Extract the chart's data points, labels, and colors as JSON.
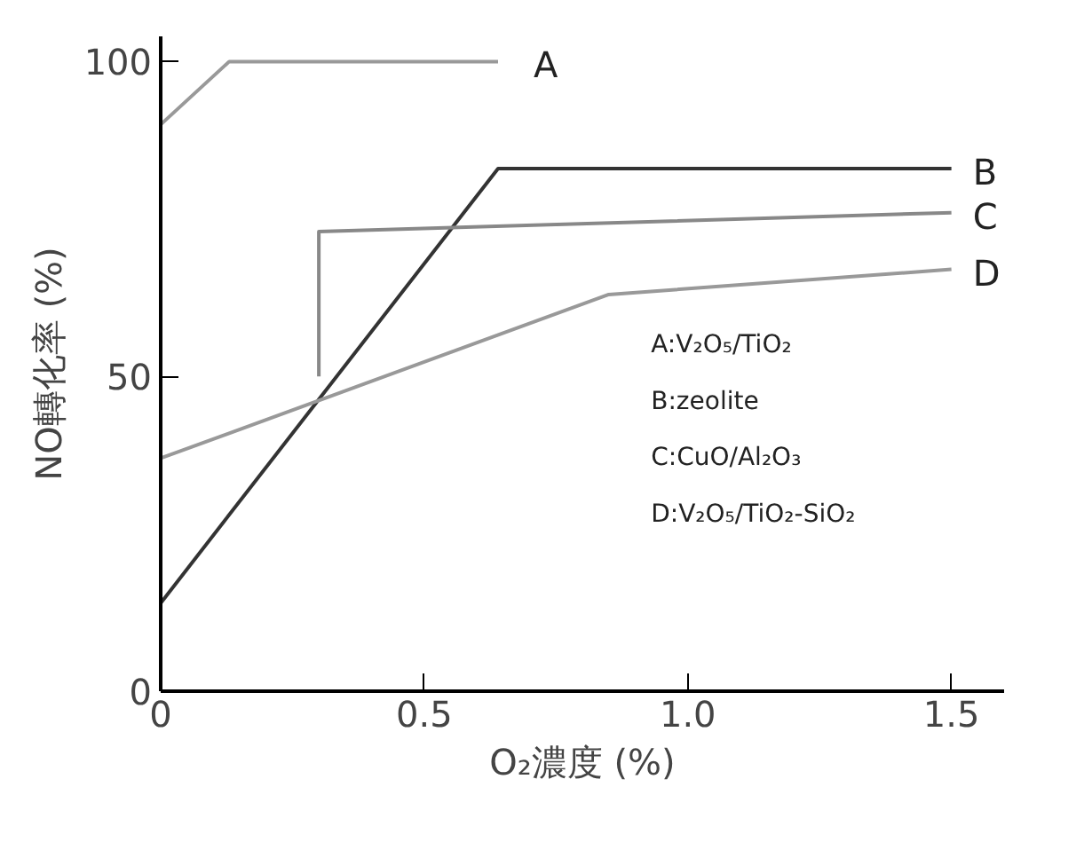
{
  "chart_data": {
    "type": "line",
    "xlabel": "O₂濃度 (%)",
    "ylabel": "NO轉化率 (%)",
    "xlim": [
      0,
      1.6
    ],
    "ylim": [
      0,
      104
    ],
    "xticks": [
      0,
      0.5,
      {
        "value": 1.0,
        "label": "1.0"
      },
      1.5
    ],
    "yticks": [
      0,
      50,
      100
    ],
    "grid": false,
    "legend": false,
    "marker": "none",
    "line_style": "solid",
    "series": [
      {
        "name": "A",
        "color": "#999999",
        "x": [
          0,
          0.13,
          0.64
        ],
        "values": [
          90,
          100,
          100
        ]
      },
      {
        "name": "B",
        "color": "#333333",
        "x": [
          0,
          0.64,
          1.5
        ],
        "values": [
          14,
          83,
          83
        ]
      },
      {
        "name": "C",
        "color": "#888888",
        "x": [
          0.3,
          0.3,
          1.5
        ],
        "values": [
          50,
          73,
          76
        ]
      },
      {
        "name": "D",
        "color": "#999999",
        "x": [
          0,
          0.85,
          1.5
        ],
        "values": [
          37,
          63,
          67
        ]
      }
    ],
    "annotations": [
      "A:V₂O₅/TiO₂",
      "B:zeolite",
      "C:CuO/Al₂O₃",
      "D:V₂O₅/TiO₂-SiO₂"
    ]
  }
}
